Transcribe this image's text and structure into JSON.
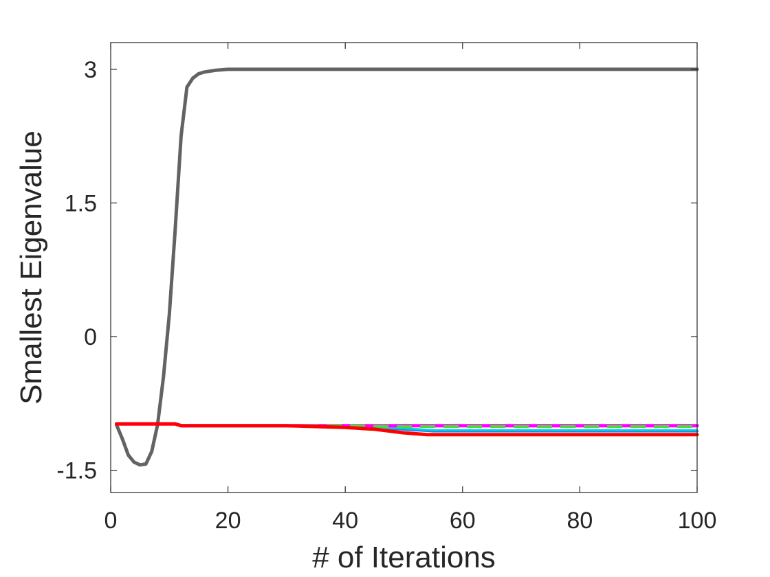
{
  "chart_data": {
    "type": "line",
    "title": "",
    "xlabel": "# of Iterations",
    "ylabel": "Smallest Eigenvalue",
    "xlim": [
      0,
      100
    ],
    "ylim": [
      -1.75,
      3.3
    ],
    "xticks": [
      0,
      20,
      40,
      60,
      80,
      100
    ],
    "xtick_labels": [
      "0",
      "20",
      "40",
      "60",
      "80",
      "100"
    ],
    "yticks": [
      -1.5,
      0,
      1.5,
      3
    ],
    "ytick_labels": [
      "-1.5",
      "0",
      "1.5",
      "3"
    ],
    "grid": false,
    "legend": "none",
    "series": [
      {
        "color": "#636363",
        "dash": "solid",
        "width": 5,
        "x": [
          1,
          2,
          3,
          4,
          5,
          6,
          7,
          8,
          9,
          10,
          11,
          12,
          13,
          14,
          15,
          16,
          18,
          20,
          25,
          100
        ],
        "y": [
          -0.99,
          -1.15,
          -1.33,
          -1.41,
          -1.44,
          -1.43,
          -1.29,
          -0.99,
          -0.45,
          0.25,
          1.2,
          2.25,
          2.8,
          2.9,
          2.95,
          2.97,
          2.99,
          3.0,
          3.0,
          3.0
        ]
      },
      {
        "color": "#1f77ff",
        "dash": "solid",
        "width": 4,
        "x": [
          1,
          11,
          12,
          30,
          40,
          45,
          50,
          55,
          60,
          100
        ],
        "y": [
          -0.98,
          -0.98,
          -1.0,
          -1.0,
          -1.01,
          -1.02,
          -1.04,
          -1.06,
          -1.06,
          -1.06
        ]
      },
      {
        "color": "#00d5d5",
        "dash": "solid",
        "width": 3,
        "x": [
          1,
          11,
          12,
          30,
          40,
          45,
          50,
          55,
          60,
          100
        ],
        "y": [
          -0.98,
          -0.98,
          -1.0,
          -1.0,
          -1.01,
          -1.02,
          -1.03,
          -1.05,
          -1.05,
          -1.05
        ]
      },
      {
        "color": "#ff00ff",
        "dash": "solid",
        "width": 5,
        "x": [
          1,
          11,
          12,
          30,
          40,
          50,
          100
        ],
        "y": [
          -0.98,
          -0.98,
          -1.0,
          -1.0,
          -1.0,
          -1.0,
          -1.0
        ]
      },
      {
        "color": "#4fd83a",
        "dash": "dashed",
        "width": 4,
        "x": [
          1,
          11,
          12,
          30,
          40,
          50,
          100
        ],
        "y": [
          -0.98,
          -0.98,
          -1.0,
          -1.0,
          -1.0,
          -1.01,
          -1.01
        ]
      },
      {
        "color": "#ff0000",
        "dash": "solid",
        "width": 5,
        "x": [
          1,
          11,
          12,
          30,
          35,
          40,
          45,
          50,
          54,
          60,
          100
        ],
        "y": [
          -0.98,
          -0.98,
          -1.0,
          -1.0,
          -1.01,
          -1.02,
          -1.04,
          -1.08,
          -1.1,
          -1.1,
          -1.1
        ]
      }
    ]
  }
}
